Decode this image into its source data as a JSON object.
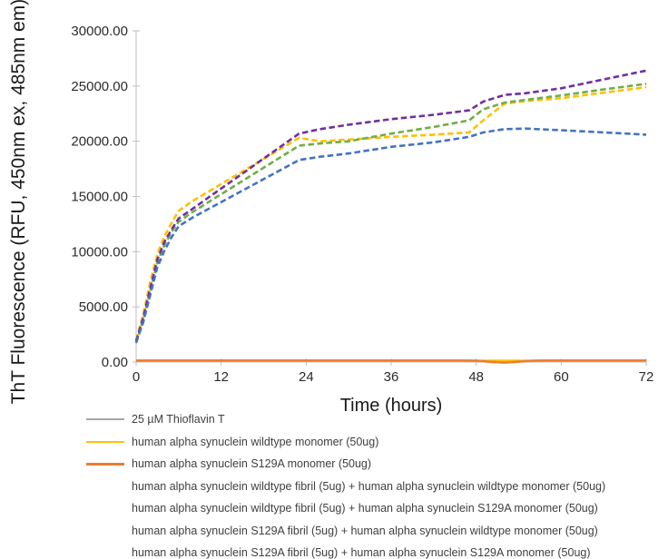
{
  "chart_data": {
    "type": "line",
    "title": "",
    "xlabel": "Time (hours)",
    "ylabel": "ThT Fluorescence (RFU, 450nm ex, 485nm em)",
    "xlim": [
      0,
      72
    ],
    "ylim": [
      0,
      30000
    ],
    "x_ticks": [
      0,
      12,
      24,
      36,
      48,
      60,
      72
    ],
    "x_tick_labels": [
      "0",
      "12",
      "24",
      "36",
      "48",
      "60",
      "72"
    ],
    "y_ticks": [
      0,
      5000,
      10000,
      15000,
      20000,
      25000,
      30000
    ],
    "y_tick_labels": [
      "0.00",
      "5000.00",
      "10000.00",
      "15000.00",
      "20000.00",
      "25000.00",
      "30000.00"
    ],
    "grid": false,
    "legend_position": "bottom-left",
    "axis_color": "#BFBFBF",
    "series": [
      {
        "name": "25 µM Thioflavin T",
        "color": "#A6A6A6",
        "style": "solid",
        "width": 2,
        "x": [
          0,
          72
        ],
        "y": [
          100,
          100
        ]
      },
      {
        "name": "human alpha synuclein wildtype monomer (50ug)",
        "color": "#FFC000",
        "style": "solid",
        "width": 2.5,
        "x": [
          0,
          72
        ],
        "y": [
          120,
          120
        ]
      },
      {
        "name": "human alpha synuclein S129A monomer (50ug)",
        "color": "#ED7D31",
        "style": "solid",
        "width": 2.5,
        "x": [
          0,
          46,
          48,
          50,
          52,
          54,
          56,
          58,
          72
        ],
        "y": [
          140,
          140,
          120,
          20,
          -50,
          30,
          120,
          140,
          150
        ]
      },
      {
        "name": "human alpha synuclein wildtype fibril (5ug) + human alpha synuclein wildtype monomer (50ug)",
        "color": "#FFC000",
        "style": "dashed",
        "width": 2.6,
        "x": [
          0,
          1,
          2,
          3,
          4,
          5,
          6,
          8,
          23,
          26,
          30,
          36,
          42,
          47,
          49,
          52,
          55,
          60,
          66,
          72
        ],
        "y": [
          2000,
          4300,
          7300,
          9800,
          11400,
          12600,
          13700,
          14600,
          20300,
          20000,
          20150,
          20400,
          20600,
          20800,
          21900,
          23400,
          23650,
          23900,
          24400,
          24900
        ]
      },
      {
        "name": "human alpha synuclein wildtype fibril (5ug) + human alpha synuclein S129A monomer (50ug)",
        "color": "#70AD47",
        "style": "dashed",
        "width": 2.6,
        "x": [
          0,
          1,
          2,
          3,
          4,
          5,
          6,
          8,
          23,
          26,
          30,
          36,
          42,
          47,
          49,
          52,
          55,
          60,
          66,
          72
        ],
        "y": [
          1700,
          3800,
          6400,
          9000,
          10600,
          11800,
          12700,
          13600,
          19600,
          19800,
          20000,
          20700,
          21300,
          21900,
          22900,
          23500,
          23750,
          24150,
          24700,
          25200
        ]
      },
      {
        "name": "human alpha synuclein S129A fibril (5ug) + human alpha synuclein wildtype monomer (50ug)",
        "color": "#7030A0",
        "style": "dashed",
        "width": 2.6,
        "x": [
          0,
          1,
          2,
          3,
          4,
          5,
          6,
          8,
          23,
          26,
          30,
          36,
          42,
          47,
          49,
          52,
          55,
          60,
          66,
          72
        ],
        "y": [
          1900,
          4000,
          6700,
          9300,
          10900,
          12000,
          13000,
          13900,
          20700,
          21100,
          21500,
          22000,
          22400,
          22800,
          23600,
          24200,
          24350,
          24800,
          25600,
          26400
        ]
      },
      {
        "name": "human alpha synuclein S129A fibril (5ug) + human alpha synuclein S129A monomer (50ug)",
        "color": "#4472C4",
        "style": "dashed",
        "width": 2.6,
        "x": [
          0,
          1,
          2,
          3,
          4,
          5,
          6,
          8,
          23,
          26,
          30,
          36,
          42,
          47,
          49,
          52,
          55,
          60,
          66,
          72
        ],
        "y": [
          1800,
          3600,
          6100,
          8600,
          10100,
          11300,
          12300,
          13100,
          18300,
          18600,
          18900,
          19500,
          19900,
          20400,
          20800,
          21100,
          21150,
          21000,
          20800,
          20600
        ]
      }
    ]
  }
}
